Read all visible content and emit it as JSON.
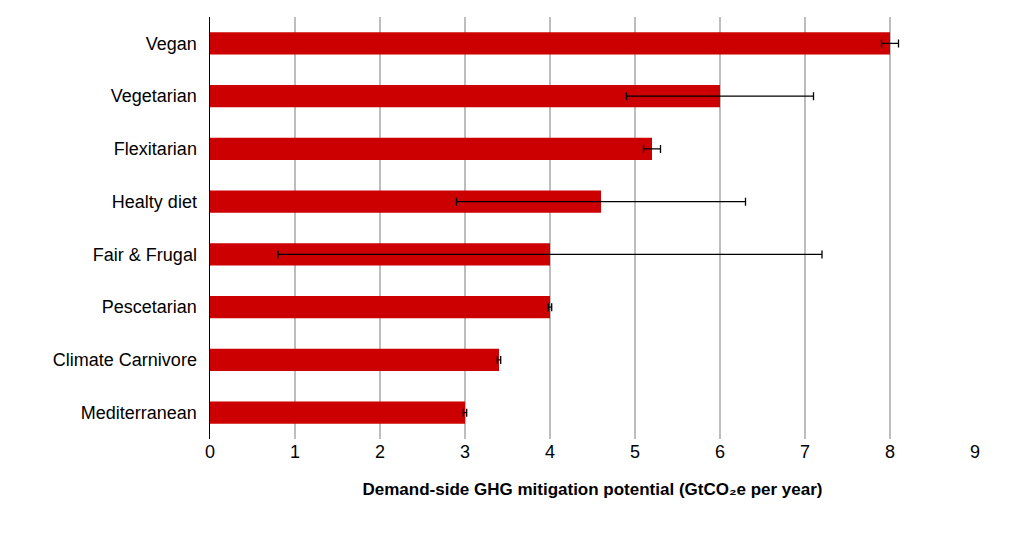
{
  "chart_data": {
    "type": "bar",
    "orientation": "horizontal",
    "xlabel": "Demand-side GHG mitigation potential (GtCO₂e per year)",
    "categories": [
      "Vegan",
      "Vegetarian",
      "Flexitarian",
      "Healty diet",
      "Fair & Frugal",
      "Pescetarian",
      "Climate Carnivore",
      "Mediterranean"
    ],
    "values": [
      8,
      6,
      5.2,
      4.6,
      4,
      4,
      3.4,
      3
    ],
    "errors": [
      0.1,
      1.1,
      0.1,
      1.7,
      3.2,
      0.02,
      0.02,
      0.02
    ],
    "color": "#cc0000",
    "xlim": [
      0,
      9
    ],
    "xticks": [
      0,
      1,
      2,
      3,
      4,
      5,
      6,
      7,
      8,
      9
    ],
    "grid": true
  }
}
